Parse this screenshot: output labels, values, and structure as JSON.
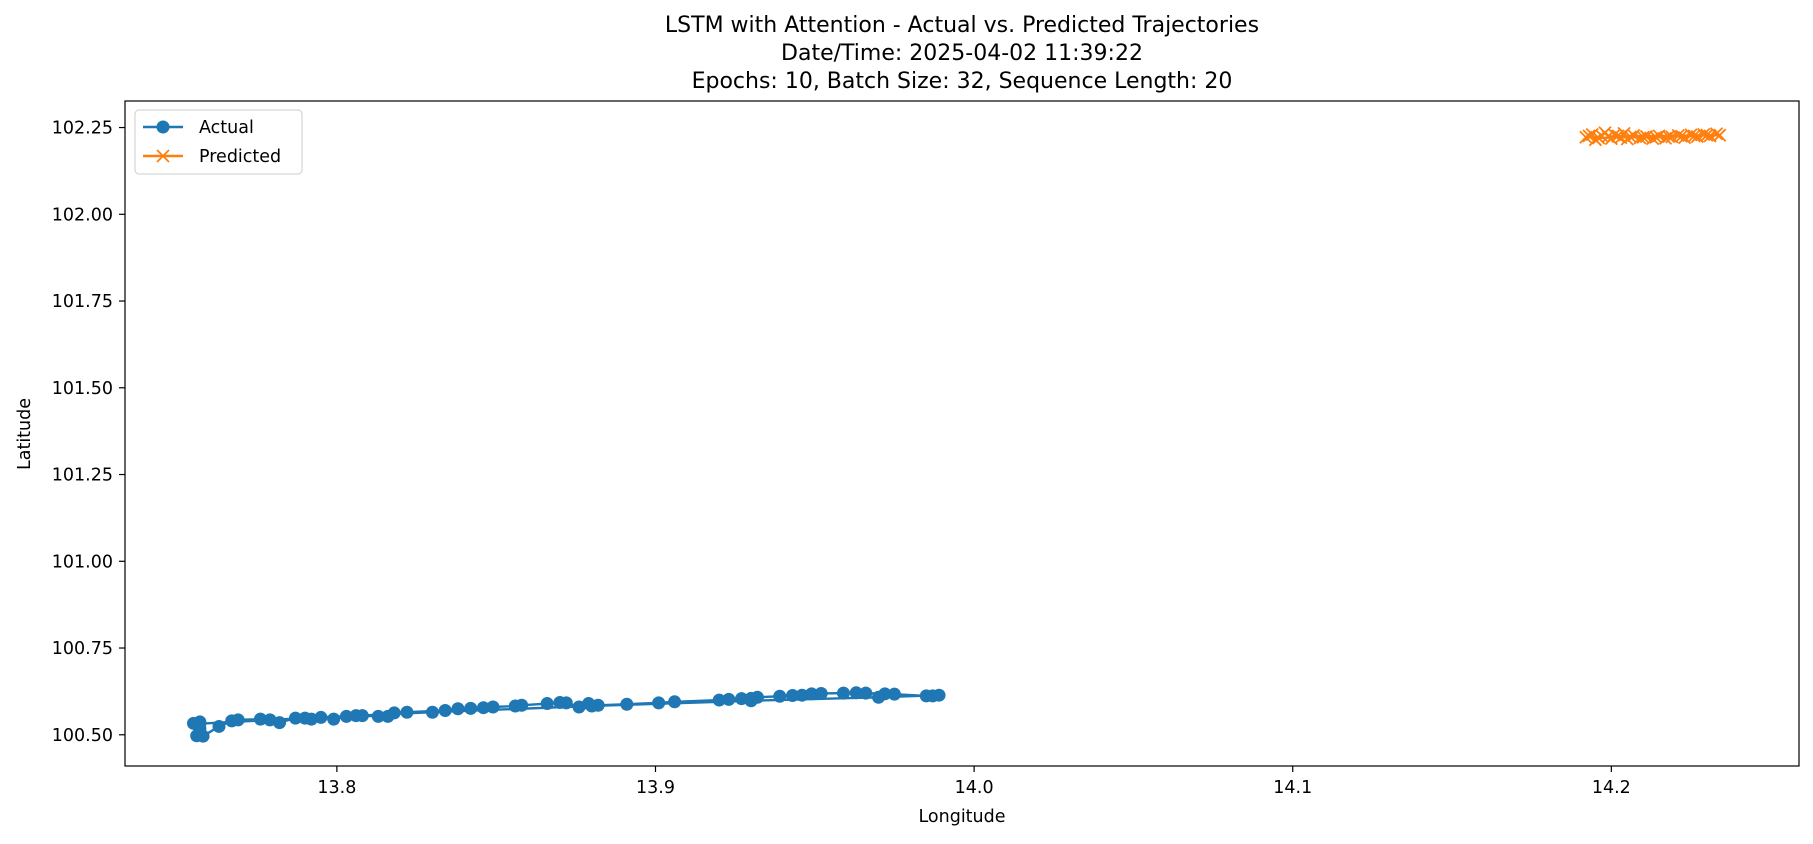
{
  "chart_data": {
    "type": "line",
    "title_lines": [
      "LSTM with Attention - Actual vs. Predicted Trajectories",
      "Date/Time: 2025-04-02 11:39:22",
      "Epochs: 10, Batch Size: 32, Sequence Length: 20"
    ],
    "xlabel": "Longitude",
    "ylabel": "Latitude",
    "xlim": [
      13.7335,
      14.2589
    ],
    "ylim": [
      100.41,
      102.3265
    ],
    "xticks": [
      {
        "value": 13.8,
        "label": "13.8"
      },
      {
        "value": 13.9,
        "label": "13.9"
      },
      {
        "value": 14.0,
        "label": "14.0"
      },
      {
        "value": 14.1,
        "label": "14.1"
      },
      {
        "value": 14.2,
        "label": "14.2"
      }
    ],
    "yticks": [
      {
        "value": 100.5,
        "label": "100.50"
      },
      {
        "value": 100.75,
        "label": "100.75"
      },
      {
        "value": 101.0,
        "label": "101.00"
      },
      {
        "value": 101.25,
        "label": "101.25"
      },
      {
        "value": 101.5,
        "label": "101.50"
      },
      {
        "value": 101.75,
        "label": "101.75"
      },
      {
        "value": 102.0,
        "label": "102.00"
      },
      {
        "value": 102.25,
        "label": "102.25"
      }
    ],
    "grid": false,
    "legend_position": "top-left",
    "series": [
      {
        "name": "Actual",
        "color": "#1f77b4",
        "marker": "circle",
        "points": [
          [
            13.756,
            100.497
          ],
          [
            13.757,
            100.518
          ],
          [
            13.755,
            100.533
          ],
          [
            13.757,
            100.537
          ],
          [
            13.758,
            100.496
          ],
          [
            13.763,
            100.524
          ],
          [
            13.767,
            100.54
          ],
          [
            13.769,
            100.543
          ],
          [
            13.776,
            100.545
          ],
          [
            13.779,
            100.543
          ],
          [
            13.782,
            100.535
          ],
          [
            13.787,
            100.548
          ],
          [
            13.792,
            100.545
          ],
          [
            13.795,
            100.55
          ],
          [
            13.799,
            100.545
          ],
          [
            13.803,
            100.553
          ],
          [
            13.806,
            100.555
          ],
          [
            13.808,
            100.555
          ],
          [
            13.813,
            100.553
          ],
          [
            13.816,
            100.553
          ],
          [
            13.818,
            100.563
          ],
          [
            13.822,
            100.565
          ],
          [
            13.834,
            100.57
          ],
          [
            13.838,
            100.575
          ],
          [
            13.842,
            100.576
          ],
          [
            13.846,
            100.578
          ],
          [
            13.849,
            100.58
          ],
          [
            13.856,
            100.583
          ],
          [
            13.858,
            100.585
          ],
          [
            13.866,
            100.59
          ],
          [
            13.87,
            100.593
          ],
          [
            13.872,
            100.592
          ],
          [
            13.876,
            100.58
          ],
          [
            13.879,
            100.59
          ],
          [
            13.882,
            100.585
          ],
          [
            13.891,
            100.588
          ],
          [
            13.901,
            100.592
          ],
          [
            13.906,
            100.595
          ],
          [
            13.92,
            100.6
          ],
          [
            13.923,
            100.602
          ],
          [
            13.927,
            100.604
          ],
          [
            13.93,
            100.605
          ],
          [
            13.932,
            100.608
          ],
          [
            13.939,
            100.611
          ],
          [
            13.943,
            100.613
          ],
          [
            13.946,
            100.614
          ],
          [
            13.949,
            100.618
          ],
          [
            13.952,
            100.619
          ],
          [
            13.959,
            100.62
          ],
          [
            13.963,
            100.621
          ],
          [
            13.966,
            100.62
          ],
          [
            13.972,
            100.618
          ],
          [
            13.975,
            100.617
          ],
          [
            13.985,
            100.612
          ],
          [
            13.987,
            100.612
          ],
          [
            13.989,
            100.614
          ],
          [
            13.97,
            100.608
          ],
          [
            13.93,
            100.598
          ],
          [
            13.88,
            100.583
          ],
          [
            13.83,
            100.565
          ],
          [
            13.79,
            100.548
          ],
          [
            13.757,
            100.532
          ]
        ]
      },
      {
        "name": "Predicted",
        "color": "#ff7f0e",
        "marker": "x",
        "points": [
          [
            14.192,
            102.222
          ],
          [
            14.194,
            102.23
          ],
          [
            14.195,
            102.215
          ],
          [
            14.197,
            102.226
          ],
          [
            14.198,
            102.235
          ],
          [
            14.2,
            102.218
          ],
          [
            14.201,
            102.229
          ],
          [
            14.203,
            102.221
          ],
          [
            14.204,
            102.233
          ],
          [
            14.205,
            102.217
          ],
          [
            14.207,
            102.227
          ],
          [
            14.209,
            102.22
          ],
          [
            14.211,
            102.224
          ],
          [
            14.213,
            102.218
          ],
          [
            14.215,
            102.226
          ],
          [
            14.217,
            102.219
          ],
          [
            14.219,
            102.223
          ],
          [
            14.221,
            102.227
          ],
          [
            14.223,
            102.221
          ],
          [
            14.225,
            102.229
          ],
          [
            14.227,
            102.224
          ],
          [
            14.229,
            102.23
          ],
          [
            14.231,
            102.226
          ],
          [
            14.233,
            102.232
          ],
          [
            14.234,
            102.228
          ],
          [
            14.199,
            102.224
          ],
          [
            14.202,
            102.226
          ],
          [
            14.206,
            102.223
          ],
          [
            14.21,
            102.222
          ],
          [
            14.214,
            102.222
          ],
          [
            14.218,
            102.224
          ],
          [
            14.222,
            102.225
          ],
          [
            14.226,
            102.226
          ],
          [
            14.23,
            102.228
          ],
          [
            14.196,
            102.22
          ],
          [
            14.193,
            102.226
          ]
        ]
      }
    ]
  }
}
